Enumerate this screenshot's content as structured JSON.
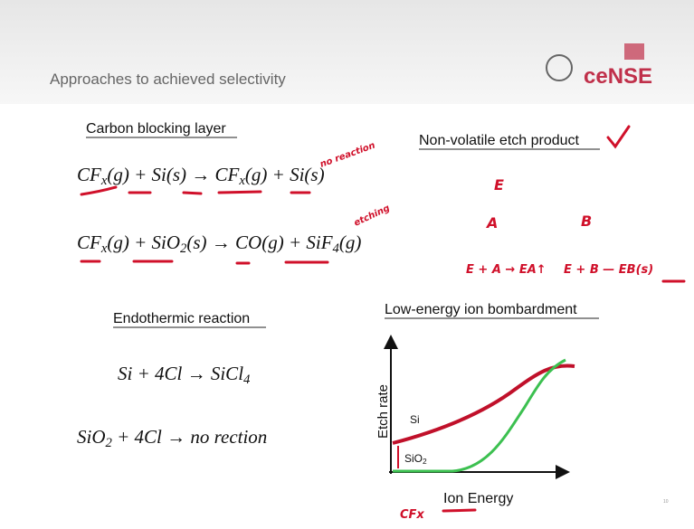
{
  "header": {
    "title": "Approaches to achieved selectivity",
    "logo": "ceNSE"
  },
  "left": {
    "heading1": "Carbon blocking layer",
    "eq1": [
      "CF",
      "x",
      "(g) + Si(s) → CF",
      "x",
      "(g) + Si(s)"
    ],
    "eq2": [
      "CF",
      "x",
      "(g) + SiO",
      "2",
      "(s) → CO(g) + SiF",
      "4",
      "(g)"
    ],
    "heading2": "Endothermic reaction",
    "eq3": [
      "Si + 4Cl → SiCl",
      "4"
    ],
    "eq4": [
      "SiO",
      "2",
      " + 4Cl → no rection"
    ]
  },
  "right": {
    "heading1": "Non-volatile etch product",
    "heading2": "Low-energy ion bombardment",
    "graph": {
      "y_label": "Etch rate",
      "x_label": "Ion Energy",
      "curve1": "Si",
      "curve2": [
        "SiO",
        "2"
      ]
    }
  },
  "notes": {
    "n1": "no reaction",
    "n2": "etching",
    "n3": "E",
    "n4": "A",
    "n5": "B",
    "n6": "E + A → EA↑",
    "n7": "E + B — EB(s)",
    "n8": "CFx"
  },
  "page_number": "10"
}
